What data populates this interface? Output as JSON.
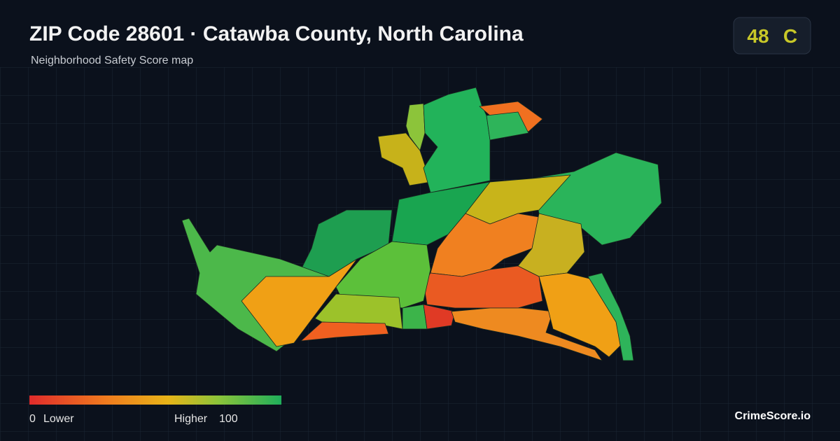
{
  "header": {
    "title": "ZIP Code 28601 · Catawba County, North Carolina",
    "subtitle": "Neighborhood Safety Score map"
  },
  "score": {
    "value": 48,
    "grade": "C"
  },
  "legend": {
    "min": 0,
    "min_label": "Lower",
    "max_label": "Higher",
    "max": 100
  },
  "brand": "CrimeScore.io"
}
